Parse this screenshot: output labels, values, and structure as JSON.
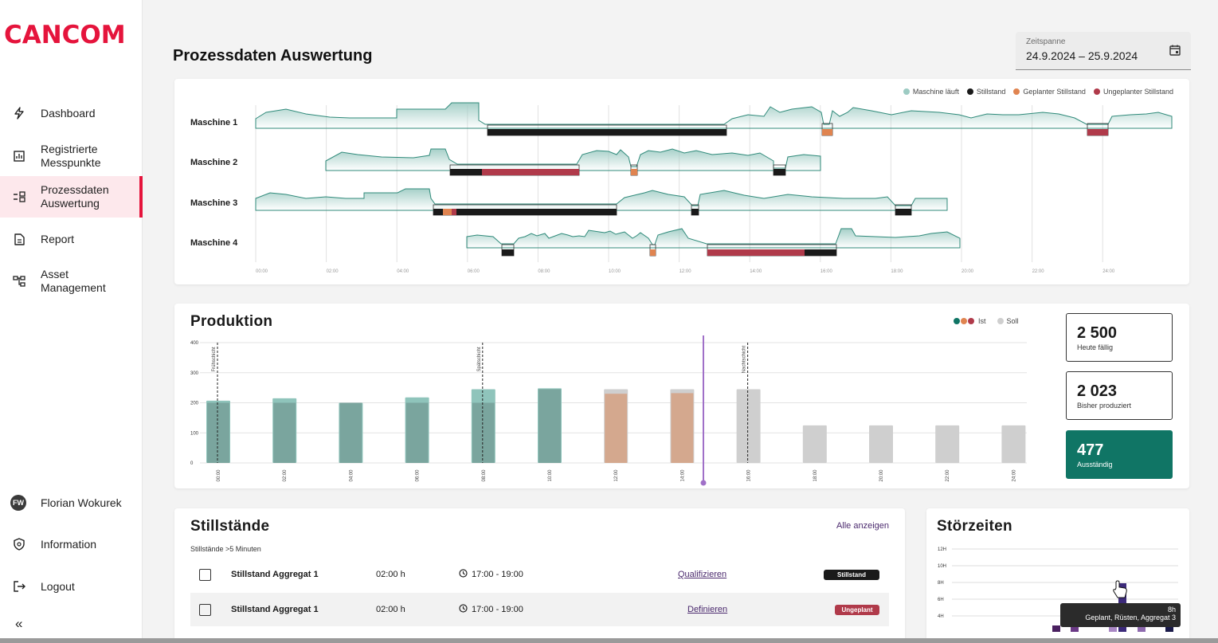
{
  "brand": {
    "logo": "CANCOM",
    "accent": "#e5143c"
  },
  "sidebar": {
    "items": [
      {
        "label": "Dashboard",
        "icon": "bolt-icon"
      },
      {
        "label": "Registrierte\nMesspunkte",
        "line1": "Registrierte",
        "line2": "Messpunkte",
        "icon": "bar-chart-icon"
      },
      {
        "label": "Prozessdaten Auswertung",
        "line1": "Prozessdaten",
        "line2": "Auswertung",
        "icon": "process-icon",
        "active": true
      },
      {
        "label": "Report",
        "icon": "document-icon"
      },
      {
        "label": "Asset Management",
        "line1": "Asset",
        "line2": "Management",
        "icon": "tree-icon"
      }
    ],
    "user": {
      "initials": "FW",
      "name": "Florian Wokurek"
    },
    "info": "Information",
    "logout": "Logout",
    "collapse": "«"
  },
  "header": {
    "title": "Prozessdaten Auswertung",
    "date": {
      "label": "Zeitspanne",
      "value": "24.9.2024 – 25.9.2024"
    }
  },
  "timeline": {
    "legend": [
      {
        "label": "Maschine läuft",
        "color": "#9dcbc3"
      },
      {
        "label": "Stillstand",
        "color": "#1a1a1a"
      },
      {
        "label": "Geplanter Stillstand",
        "color": "#e08450"
      },
      {
        "label": "Ungeplanter Stillstand",
        "color": "#b03a4a"
      }
    ],
    "machines": [
      "Maschine 1",
      "Maschine 2",
      "Maschine 3",
      "Maschine 4"
    ],
    "ticks": [
      "00:00",
      "02:00",
      "04:00",
      "06:00",
      "08:00",
      "10:00",
      "12:00",
      "14:00",
      "16:00",
      "18:00",
      "20:00",
      "22:00",
      "24:00"
    ]
  },
  "production": {
    "title": "Produktion",
    "legend": {
      "ist": "Ist",
      "soll": "Soll"
    },
    "shift_labels": [
      "Frühschicht",
      "Spätschicht",
      "Nachtschicht"
    ],
    "kpis": [
      {
        "value": "2 500",
        "label": "Heute fällig"
      },
      {
        "value": "2 023",
        "label": "Bisher produziert"
      },
      {
        "value": "477",
        "label": "Ausständig"
      }
    ]
  },
  "chart_data": {
    "type": "bar",
    "title": "Produktion",
    "categories": [
      "00:00",
      "02:00",
      "04:00",
      "06:00",
      "08:00",
      "10:00",
      "12:00",
      "14:00",
      "16:00",
      "18:00",
      "20:00",
      "22:00",
      "24:00"
    ],
    "ylim": [
      0,
      400
    ],
    "yticks": [
      0,
      100,
      200,
      300,
      400
    ],
    "series": [
      {
        "name": "Ist",
        "values": [
          200,
          200,
          200,
          200,
          200,
          245,
          230,
          232,
          null,
          null,
          null,
          null,
          null
        ]
      },
      {
        "name": "Soll",
        "values": [
          207,
          215,
          200,
          218,
          245,
          248,
          245,
          245,
          245,
          125,
          125,
          125,
          125
        ]
      }
    ],
    "colors": {
      "ist_green": "#7aa59e",
      "soll_green": "#8fc4bb",
      "ist_orange": "#d4a88e",
      "soll_grey": "#cfcfcf",
      "now": "#a070c8"
    }
  },
  "stillstaende": {
    "title": "Stillstände",
    "subtitle": "Stillstände >5 Minuten",
    "link": "Alle anzeigen",
    "rows": [
      {
        "name": "Stillstand Aggregat 1",
        "duration": "02:00 h",
        "time": "17:00 - 19:00",
        "action": "Qualifizieren",
        "badge": "Stillstand",
        "badge_color": "#1a1a1a"
      },
      {
        "name": "Stillstand Aggregat 1",
        "duration": "02:00 h",
        "time": "17:00 - 19:00",
        "action": "Definieren",
        "badge": "Ungeplant",
        "badge_color": "#b03a4a"
      }
    ]
  },
  "stoerzeiten": {
    "title": "Störzeiten",
    "yticks": [
      "12H",
      "10H",
      "8H",
      "6H",
      "4H"
    ],
    "tooltip": {
      "value": "8h",
      "detail": "Geplant, Rüsten, Aggregat 3"
    }
  }
}
